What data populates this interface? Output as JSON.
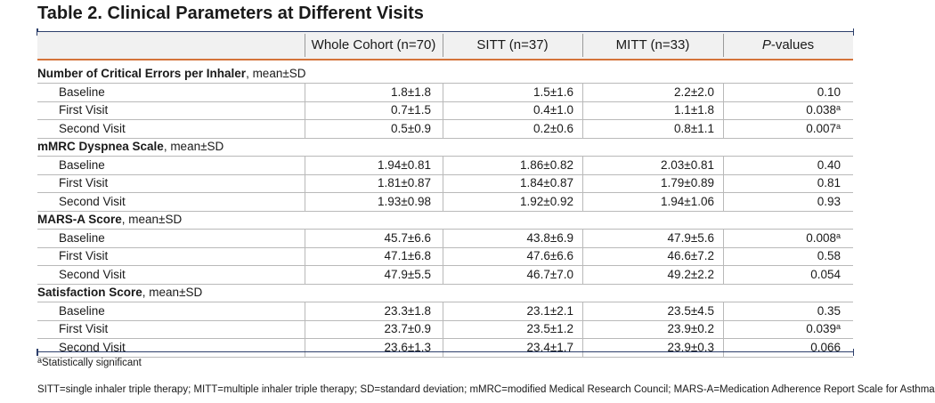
{
  "title": "Table 2. Clinical Parameters at Different Visits",
  "columns": [
    "Whole Cohort (n=70)",
    "SITT (n=37)",
    "MITT (n=33)"
  ],
  "pcol": {
    "italic": "P",
    "rest": "-values"
  },
  "sections": [
    {
      "name": "Number of Critical Errors per Inhaler",
      "suffix": ", mean±SD",
      "rows": [
        {
          "label": "Baseline",
          "c1": "1.8±1.8",
          "c2": "1.5±1.6",
          "c3": "2.2±2.0",
          "p": "0.10",
          "sig": ""
        },
        {
          "label": "First Visit",
          "c1": "0.7±1.5",
          "c2": "0.4±1.0",
          "c3": "1.1±1.8",
          "p": "0.038",
          "sig": "a"
        },
        {
          "label": "Second Visit",
          "c1": "0.5±0.9",
          "c2": "0.2±0.6",
          "c3": "0.8±1.1",
          "p": "0.007",
          "sig": "a"
        }
      ]
    },
    {
      "name": "mMRC Dyspnea Scale",
      "suffix": ", mean±SD",
      "rows": [
        {
          "label": "Baseline",
          "c1": "1.94±0.81",
          "c2": "1.86±0.82",
          "c3": "2.03±0.81",
          "p": "0.40",
          "sig": ""
        },
        {
          "label": "First Visit",
          "c1": "1.81±0.87",
          "c2": "1.84±0.87",
          "c3": "1.79±0.89",
          "p": "0.81",
          "sig": ""
        },
        {
          "label": "Second Visit",
          "c1": "1.93±0.98",
          "c2": "1.92±0.92",
          "c3": "1.94±1.06",
          "p": "0.93",
          "sig": ""
        }
      ]
    },
    {
      "name": "MARS-A Score",
      "suffix": ", mean±SD",
      "rows": [
        {
          "label": "Baseline",
          "c1": "45.7±6.6",
          "c2": "43.8±6.9",
          "c3": "47.9±5.6",
          "p": "0.008",
          "sig": "a"
        },
        {
          "label": "First Visit",
          "c1": "47.1±6.8",
          "c2": "47.6±6.6",
          "c3": "46.6±7.2",
          "p": "0.58",
          "sig": ""
        },
        {
          "label": "Second Visit",
          "c1": "47.9±5.5",
          "c2": "46.7±7.0",
          "c3": "49.2±2.2",
          "p": "0.054",
          "sig": ""
        }
      ]
    },
    {
      "name": "Satisfaction Score",
      "suffix": ", mean±SD",
      "rows": [
        {
          "label": "Baseline",
          "c1": "23.3±1.8",
          "c2": "23.1±2.1",
          "c3": "23.5±4.5",
          "p": "0.35",
          "sig": ""
        },
        {
          "label": "First Visit",
          "c1": "23.7±0.9",
          "c2": "23.5±1.2",
          "c3": "23.9±0.2",
          "p": "0.039",
          "sig": "a"
        },
        {
          "label": "Second Visit",
          "c1": "23.6±1.3",
          "c2": "23.4±1.7",
          "c3": "23.9±0.3",
          "p": "0.066",
          "sig": ""
        }
      ]
    }
  ],
  "footnote_sig": {
    "mark": "a",
    "text": "Statistically significant"
  },
  "footnote_abbrev": "SITT=single inhaler triple therapy; MITT=multiple inhaler triple therapy; SD=standard deviation; mMRC=modified Medical Research Council; MARS-A=Medication Adherence Report Scale for Asthma",
  "colors": {
    "rule": "#2d3f6b",
    "accent": "#d4733a",
    "header_bg": "#f1f1f1"
  }
}
